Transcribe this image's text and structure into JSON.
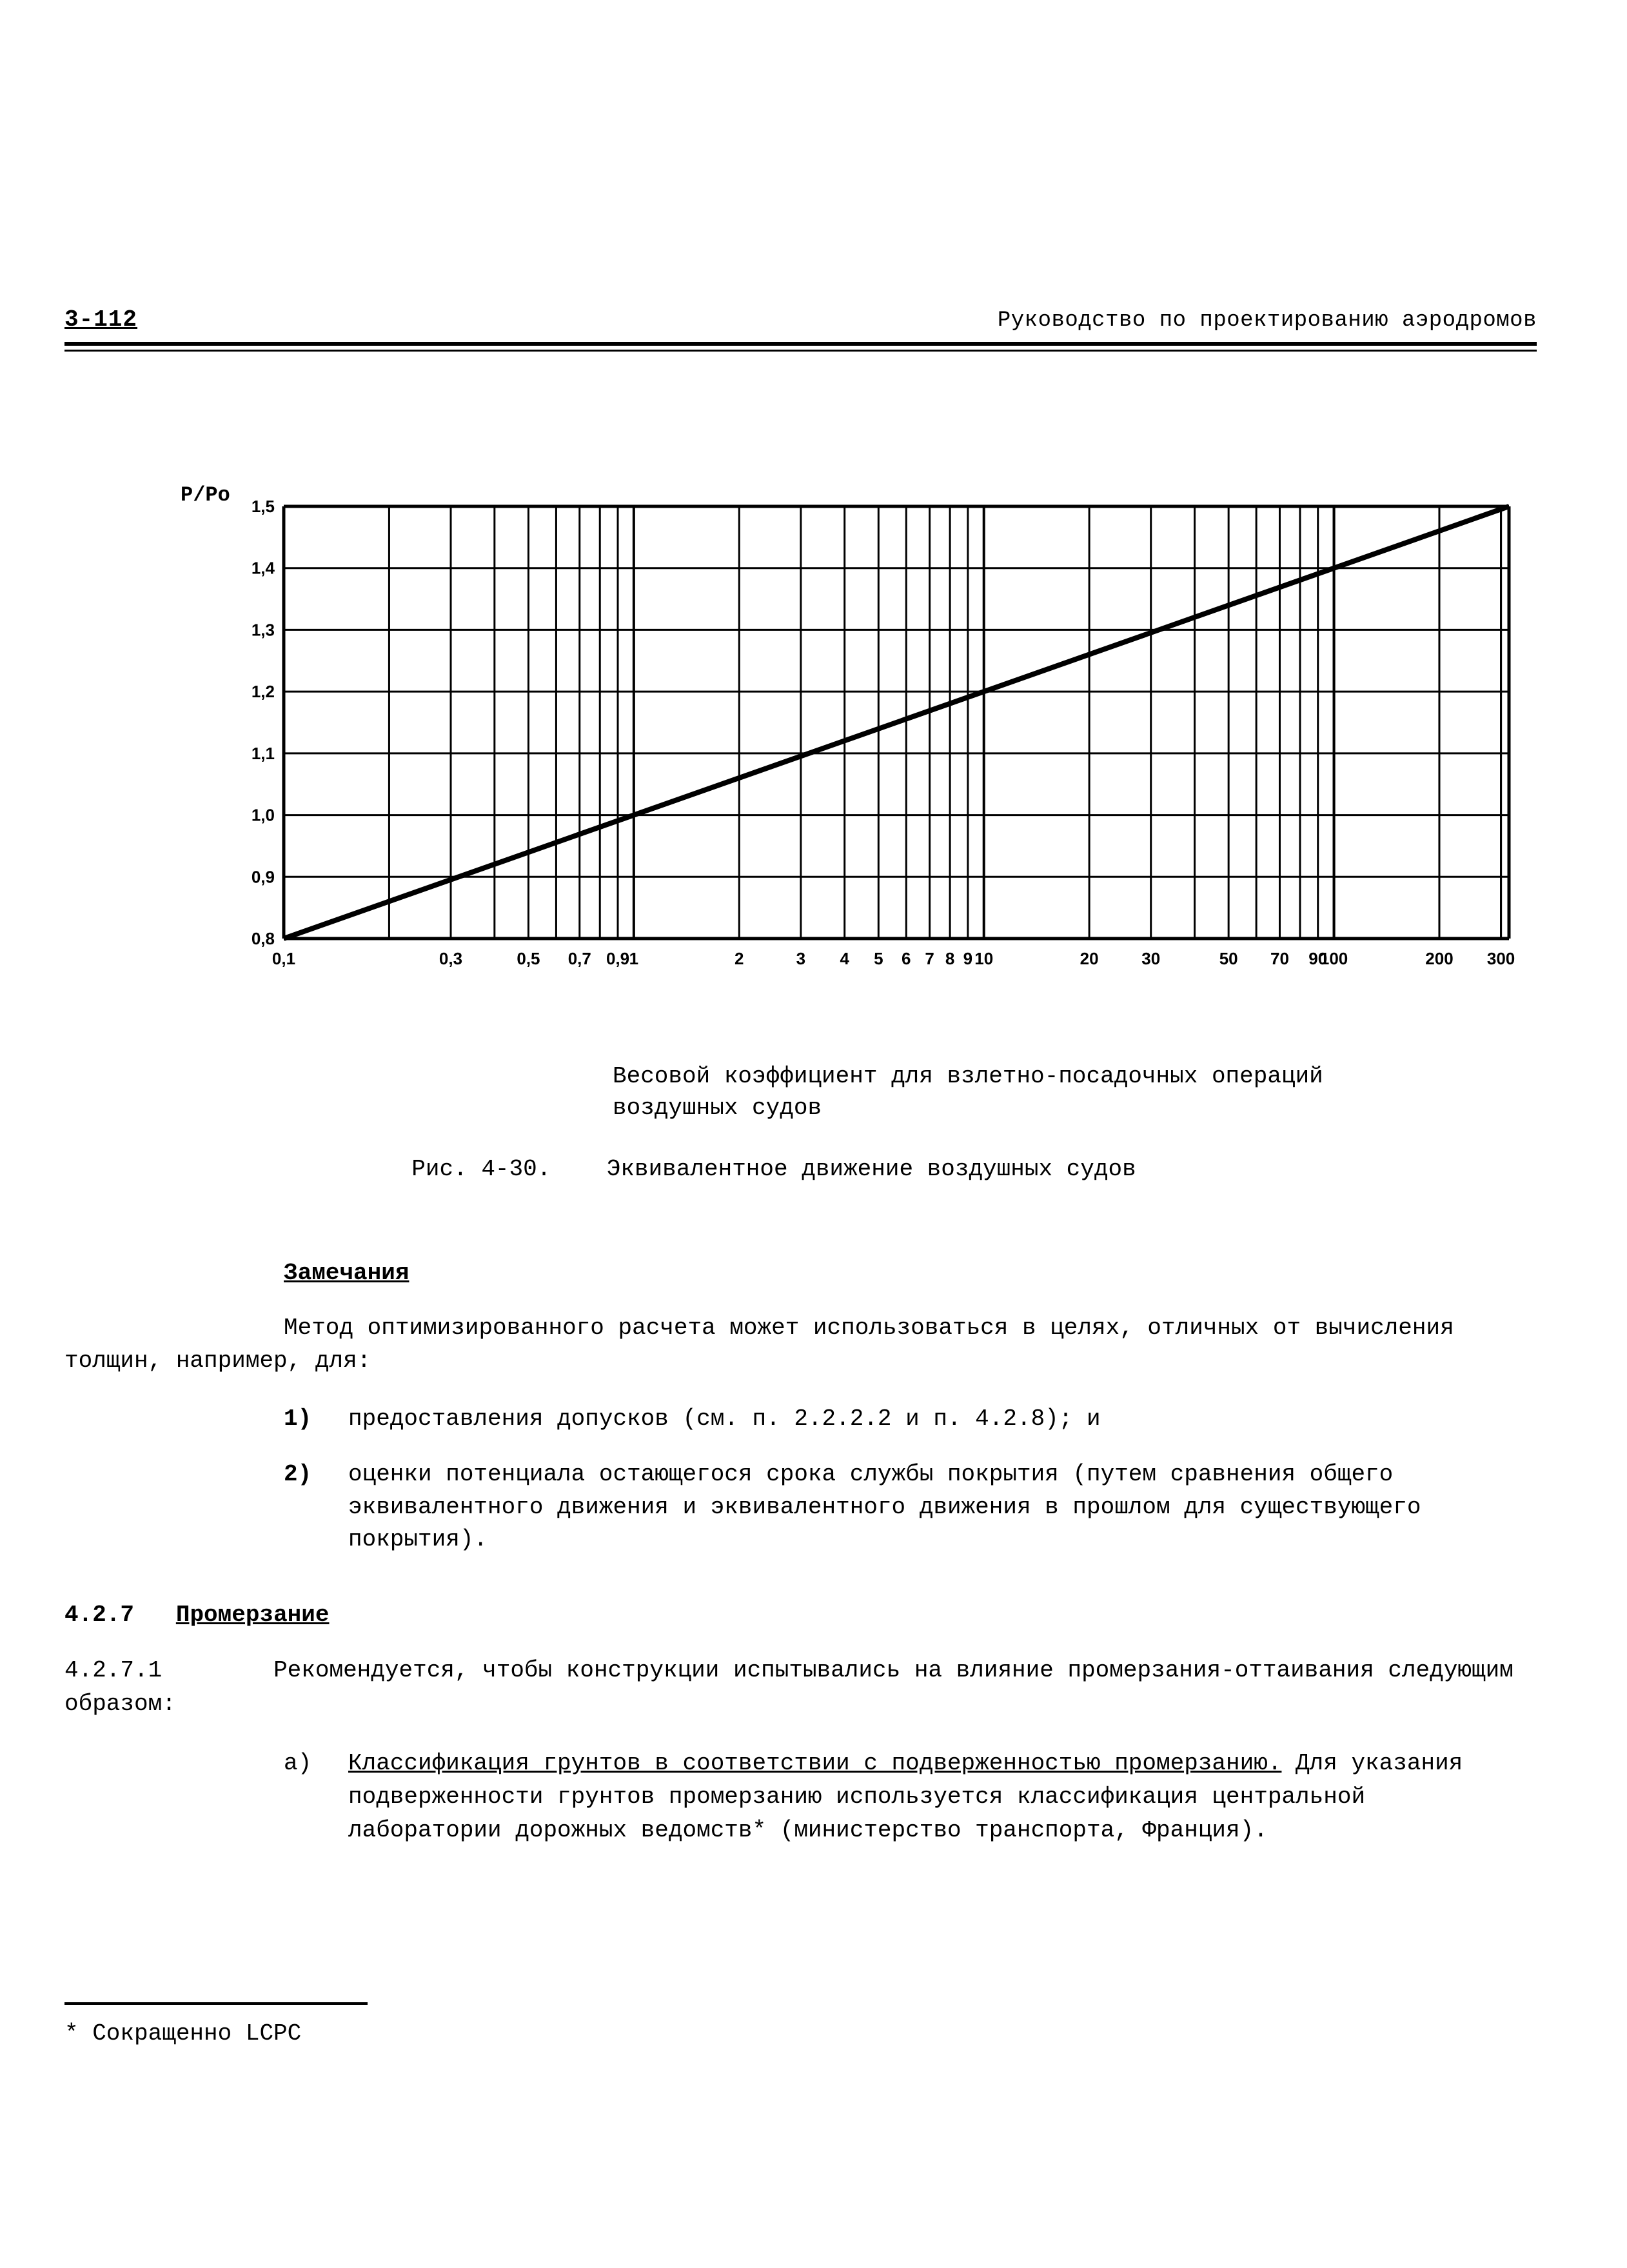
{
  "header": {
    "page_number": "3-112",
    "manual_title": "Руководство по проектированию аэродромов"
  },
  "chart": {
    "type": "line",
    "ylabel_symbol": "P/Po",
    "background_color": "#ffffff",
    "grid_color": "#000000",
    "grid_line_width": 3,
    "axis_line_width": 5,
    "data_line_width": 8,
    "data_line_color": "#000000",
    "ylim": [
      0.8,
      1.5
    ],
    "ytick_step": 0.1,
    "ytick_labels": [
      "0,8",
      "0,9",
      "1,0",
      "1,1",
      "1,2",
      "1,3",
      "1,4",
      "1,5"
    ],
    "ytick_fontsize": 26,
    "x_scale": "log",
    "xlim_exponent": [
      -1,
      2.5
    ],
    "x_major_ticks": [
      0.1,
      1,
      10,
      100
    ],
    "x_labeled_ticks": [
      0.1,
      0.3,
      0.5,
      0.7,
      0.9,
      1,
      2,
      3,
      4,
      5,
      6,
      7,
      8,
      9,
      10,
      20,
      30,
      50,
      70,
      90,
      100,
      200,
      300
    ],
    "x_tick_labels": [
      "0,1",
      "0,3",
      "0,5",
      "0,7",
      "0,9",
      "1",
      "2",
      "3",
      "4",
      "5",
      "6",
      "7",
      "8",
      "9",
      "10",
      "20",
      "30",
      "50",
      "70",
      "90",
      "100",
      "200",
      "300"
    ],
    "xtick_fontsize": 26,
    "line_points": [
      {
        "x_exp": -1.0,
        "y": 0.8
      },
      {
        "x_exp": 2.5,
        "y": 1.5
      }
    ],
    "xlabel": "Весовой коэффициент для взлетно-посадочных операций воздушных судов",
    "caption_prefix": "Рис. 4-30.",
    "caption_text": "Эквивалентное движение воздушных судов"
  },
  "notes": {
    "heading": "Замечания",
    "intro": "Метод оптимизированного расчета может использоваться в целях, отличных от вычисления толщин, например, для:",
    "items": [
      {
        "num": "1)",
        "text": "предоставления допусков (см. п. 2.2.2.2 и п. 4.2.8); и"
      },
      {
        "num": "2)",
        "text": "оценки потенциала остающегося срока службы покрытия (путем сравнения общего эквивалентного движения и эквивалентного движения в прошлом для существующего покрытия)."
      }
    ]
  },
  "section_427": {
    "number": "4.2.7",
    "title": "Промерзание",
    "p1_number": "4.2.7.1",
    "p1_text": "Рекомендуется, чтобы конструкции испытывались на влияние промерзания-оттаивания следующим образом:",
    "items": [
      {
        "num": "a)",
        "title": "Классификация грунтов в соответствии с подверженностью промерзанию.",
        "text": "Для указания подверженности грунтов промерзанию используется классификация центральной лаборатории дорожных ведомств* (министерство транспорта, Франция)."
      }
    ]
  },
  "footnote": "* Сокращенно LCPC"
}
